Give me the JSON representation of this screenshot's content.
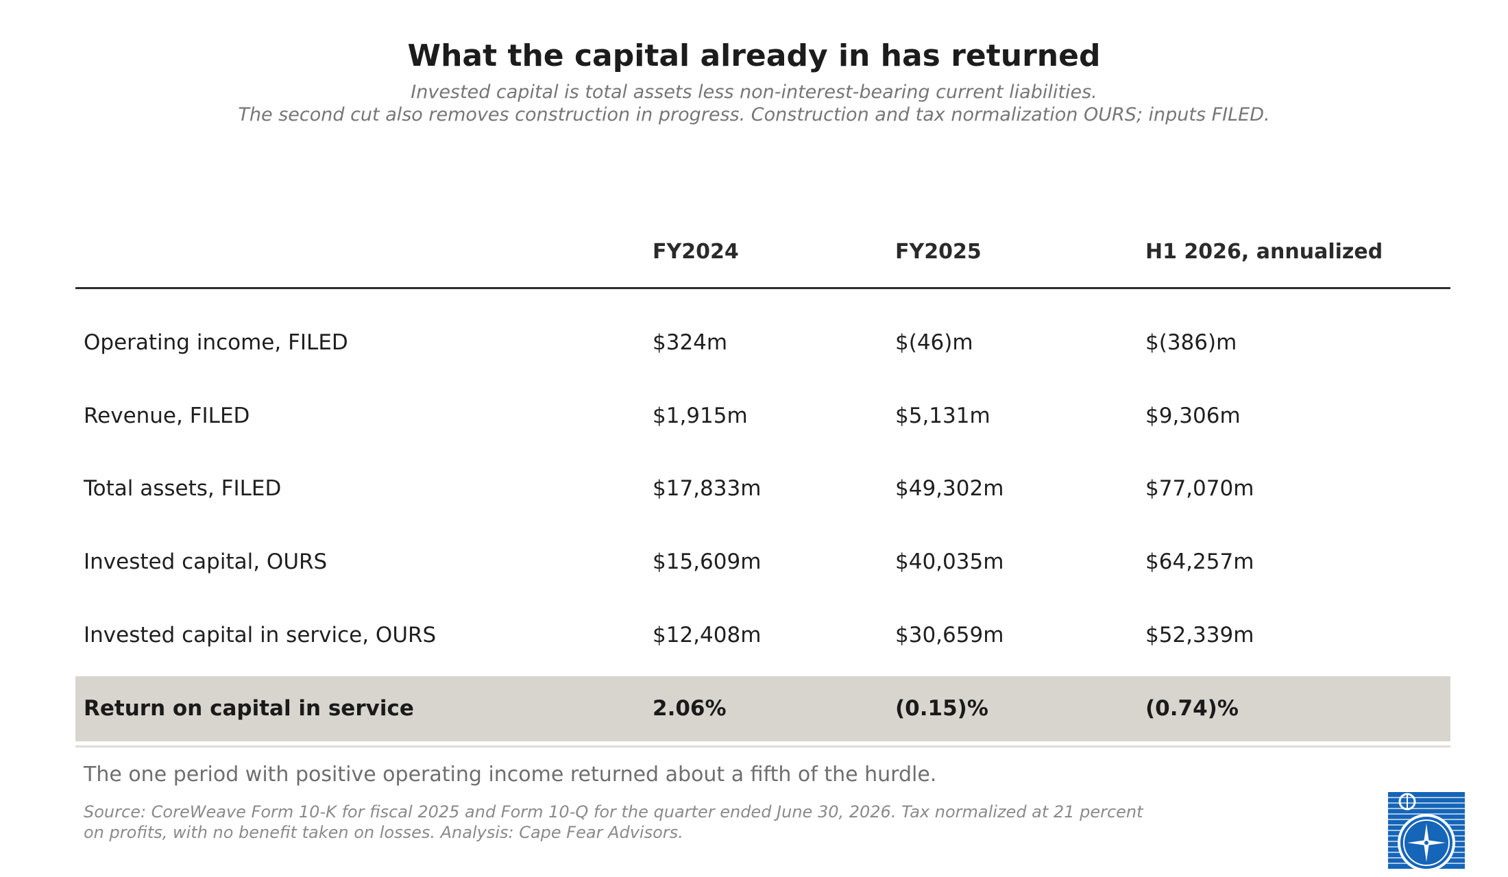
{
  "header": {
    "title": "What the capital already in has returned",
    "subtitle_line1": "Invested capital is total assets less non-interest-bearing current liabilities.",
    "subtitle_line2": "The second cut also removes construction in progress. Construction and tax normalization OURS; inputs FILED."
  },
  "table": {
    "columns": [
      "",
      "FY2024",
      "FY2025",
      "H1 2026, annualized"
    ],
    "rows": [
      [
        "Operating income, FILED",
        "$324m",
        "$(46)m",
        "$(386)m"
      ],
      [
        "Revenue, FILED",
        "$1,915m",
        "$5,131m",
        "$9,306m"
      ],
      [
        "Total assets, FILED",
        "$17,833m",
        "$49,302m",
        "$77,070m"
      ],
      [
        "Invested capital, OURS",
        "$15,609m",
        "$40,035m",
        "$64,257m"
      ],
      [
        "Invested capital in service, OURS",
        "$12,408m",
        "$30,659m",
        "$52,339m"
      ]
    ],
    "highlight_row": [
      "Return on capital in service",
      "2.06%",
      "(0.15)%",
      "(0.74)%"
    ]
  },
  "chart_data": {
    "type": "table",
    "title": "What the capital already in has returned",
    "columns": [
      "",
      "FY2024",
      "FY2025",
      "H1 2026, annualized"
    ],
    "rows": [
      [
        "Operating income, FILED",
        "$324m",
        "$(46)m",
        "$(386)m"
      ],
      [
        "Revenue, FILED",
        "$1,915m",
        "$5,131m",
        "$9,306m"
      ],
      [
        "Total assets, FILED",
        "$17,833m",
        "$49,302m",
        "$77,070m"
      ],
      [
        "Invested capital, OURS",
        "$15,609m",
        "$40,035m",
        "$64,257m"
      ],
      [
        "Invested capital in service, OURS",
        "$12,408m",
        "$30,659m",
        "$52,339m"
      ],
      [
        "Return on capital in service",
        "2.06%",
        "(0.15)%",
        "(0.74)%"
      ]
    ]
  },
  "footer": {
    "takeaway": "The one period with positive operating income returned about a fifth of the hurdle.",
    "source": "Source: CoreWeave Form 10-K for fiscal 2025 and Form 10-Q for the quarter ended June 30, 2026. Tax normalized at 21 percent on profits, with no benefit taken on losses. Analysis: Cape Fear Advisors."
  },
  "colors": {
    "highlight_fill": "#d8d5ce",
    "logo_blue": "#1565b8"
  },
  "logo": {
    "icon": "compass-icon"
  }
}
